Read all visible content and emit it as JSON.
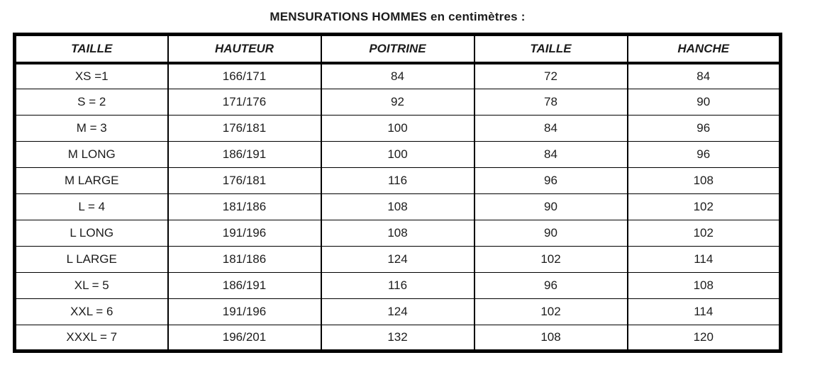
{
  "page_title": "MENSURATIONS HOMMES en centimètres :",
  "colors": {
    "text": "#1c1c1c",
    "border": "#000000",
    "background": "#ffffff"
  },
  "table": {
    "headers": [
      "TAILLE",
      "HAUTEUR",
      "POITRINE",
      "TAILLE",
      "HANCHE"
    ],
    "rows": [
      [
        "XS =1",
        "166/171",
        "84",
        "72",
        "84"
      ],
      [
        "S = 2",
        "171/176",
        "92",
        "78",
        "90"
      ],
      [
        "M = 3",
        "176/181",
        "100",
        "84",
        "96"
      ],
      [
        "M LONG",
        "186/191",
        "100",
        "84",
        "96"
      ],
      [
        "M LARGE",
        "176/181",
        "116",
        "96",
        "108"
      ],
      [
        "L = 4",
        "181/186",
        "108",
        "90",
        "102"
      ],
      [
        "L LONG",
        "191/196",
        "108",
        "90",
        "102"
      ],
      [
        "L LARGE",
        "181/186",
        "124",
        "102",
        "114"
      ],
      [
        "XL = 5",
        "186/191",
        "116",
        "96",
        "108"
      ],
      [
        "XXL = 6",
        "191/196",
        "124",
        "102",
        "114"
      ],
      [
        "XXXL = 7",
        "196/201",
        "132",
        "108",
        "120"
      ]
    ]
  }
}
